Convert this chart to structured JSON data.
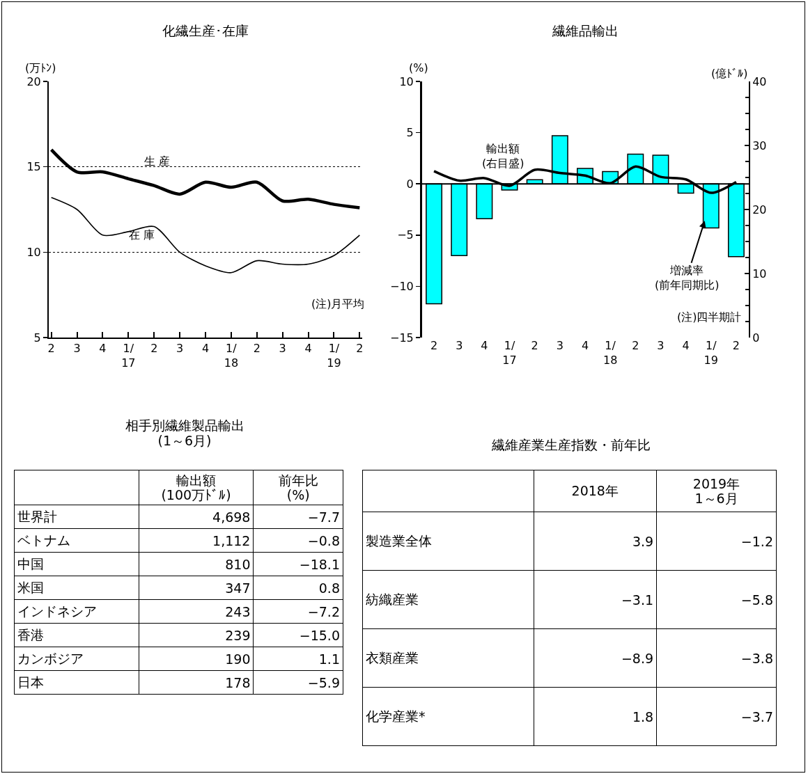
{
  "chart_data": [
    {
      "type": "line",
      "title": "化繊生産･在庫",
      "ylabel": "(万ﾄﾝ)",
      "categories": [
        "2",
        "3",
        "4",
        "1/\n17",
        "2",
        "3",
        "4",
        "1/\n18",
        "2",
        "3",
        "4",
        "1/\n19",
        "2"
      ],
      "series": [
        {
          "name": "生 産",
          "color": "#000000",
          "values": [
            16.0,
            14.7,
            14.7,
            14.3,
            13.9,
            13.4,
            14.1,
            13.8,
            14.1,
            13.0,
            13.1,
            12.8,
            12.6
          ]
        },
        {
          "name": "在 庫",
          "color": "#000000",
          "values": [
            13.2,
            12.5,
            11.0,
            11.2,
            11.5,
            10.0,
            9.2,
            8.8,
            9.5,
            9.3,
            9.3,
            9.8,
            11.0
          ]
        }
      ],
      "ylim": [
        5,
        20
      ],
      "yticks": [
        5,
        10,
        15,
        20
      ],
      "grid": "y",
      "annotations": [
        "(注)月平均"
      ]
    },
    {
      "type": "bar",
      "title": "繊維品輸出",
      "ylabel": "(%)",
      "y2label": "(億ﾄﾞﾙ)",
      "categories": [
        "2",
        "3",
        "4",
        "1/\n17",
        "2",
        "3",
        "4",
        "1/\n18",
        "2",
        "3",
        "4",
        "1/\n19",
        "2"
      ],
      "series": [
        {
          "name": "増減率\n(前年同期比)",
          "type": "bar",
          "color": "#00ffff",
          "values": [
            -11.7,
            -7.0,
            -3.4,
            -0.6,
            0.4,
            4.7,
            1.5,
            1.2,
            2.9,
            2.8,
            -0.9,
            -4.3,
            -7.1
          ]
        },
        {
          "name": "輸出額\n(右目盛)",
          "type": "line",
          "axis": "y2",
          "color": "#000000",
          "values": [
            26.0,
            24.5,
            24.9,
            23.7,
            26.2,
            25.7,
            25.3,
            24.1,
            26.7,
            25.1,
            24.7,
            22.6,
            24.3
          ]
        }
      ],
      "ylim": [
        -15,
        10
      ],
      "yticks": [
        -15,
        -10,
        -5,
        0,
        5,
        10
      ],
      "y2lim": [
        0,
        40
      ],
      "y2ticks": [
        0,
        10,
        20,
        30,
        40
      ],
      "annotations": [
        "(注)四半期計"
      ]
    },
    {
      "type": "other",
      "title": "相手別繊維製品輸出\n(1～6月)",
      "categories": [
        null,
        "輸出額\n(100万ﾄﾞﾙ)",
        "前年比\n(%)"
      ],
      "y_categories": [
        "世界計",
        "ベトナム",
        "中国",
        "米国",
        "インドネシア",
        "香港",
        "カンボジア",
        "日本"
      ],
      "cell_labels": [
        [
          "4,698",
          "−7.7"
        ],
        [
          "1,112",
          "−0.8"
        ],
        [
          "810",
          "−18.1"
        ],
        [
          "347",
          "0.8"
        ],
        [
          "243",
          "−7.2"
        ],
        [
          "239",
          "−15.0"
        ],
        [
          "190",
          "1.1"
        ],
        [
          "178",
          "−5.9"
        ]
      ]
    },
    {
      "type": "other",
      "title": "繊維産業生産指数・前年比",
      "categories": [
        null,
        "2018年",
        "2019年\n1～6月"
      ],
      "y_categories": [
        "製造業全体",
        "紡織産業",
        "衣類産業",
        "化学産業*"
      ],
      "cell_labels": [
        [
          "3.9",
          "−1.2"
        ],
        [
          "−3.1",
          "−5.8"
        ],
        [
          "−8.9",
          "−3.8"
        ],
        [
          "1.8",
          "−3.7"
        ]
      ]
    }
  ]
}
